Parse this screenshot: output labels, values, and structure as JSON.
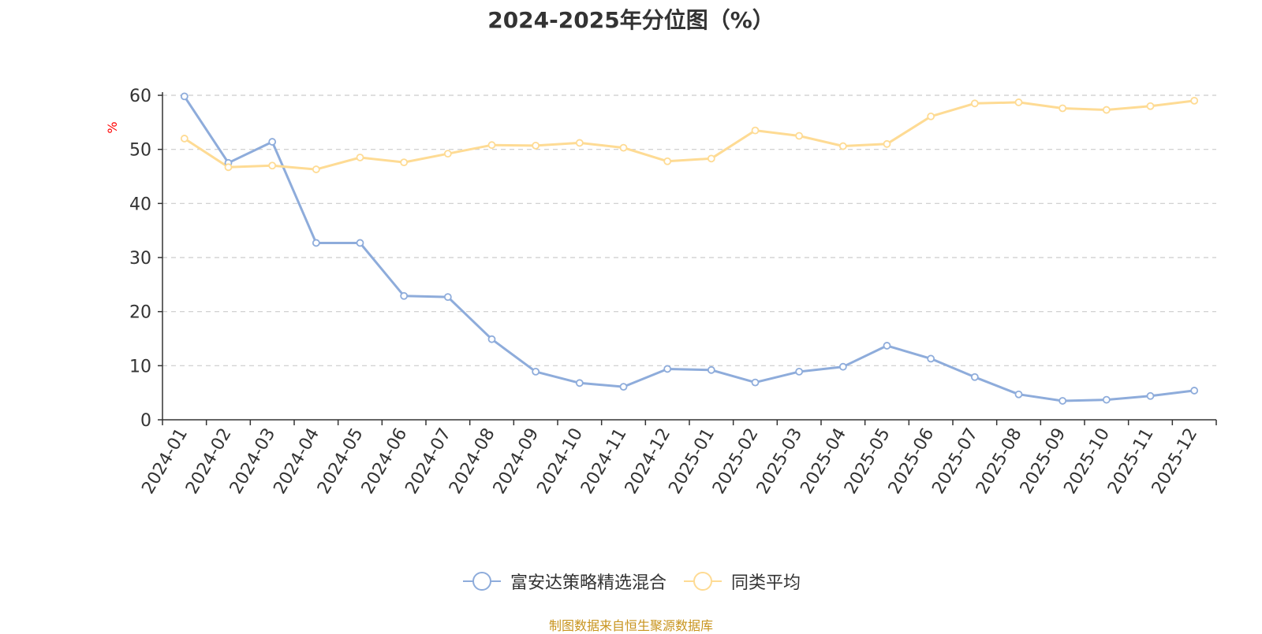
{
  "colors": {
    "series_primary": "#8eacdb",
    "series_secondary": "#fedb94",
    "axis": "#333333",
    "grid": "#cccccc",
    "ylabel": "#ff0000",
    "source": "#c8941e"
  },
  "chart_data": {
    "type": "line",
    "title": "2024-2025年分位图（%）",
    "xlabel": "",
    "ylabel": "%",
    "ylim": [
      0,
      60
    ],
    "yticks": [
      0,
      10,
      20,
      30,
      40,
      50,
      60
    ],
    "grid": true,
    "legend_position": "bottom-center",
    "categories": [
      "2024-01",
      "2024-02",
      "2024-03",
      "2024-04",
      "2024-05",
      "2024-06",
      "2024-07",
      "2024-08",
      "2024-09",
      "2024-10",
      "2024-11",
      "2024-12",
      "2025-01",
      "2025-02",
      "2025-03",
      "2025-04",
      "2025-05",
      "2025-06",
      "2025-07",
      "2025-08",
      "2025-09",
      "2025-10",
      "2025-11",
      "2025-12"
    ],
    "series": [
      {
        "name": "富安达策略精选混合",
        "values": [
          59.8,
          47.5,
          51.4,
          32.7,
          32.7,
          22.9,
          22.7,
          14.9,
          8.9,
          6.8,
          6.1,
          9.4,
          9.2,
          6.9,
          8.9,
          9.8,
          13.7,
          11.3,
          7.9,
          4.7,
          3.5,
          3.7,
          4.4,
          5.4
        ]
      },
      {
        "name": "同类平均",
        "values": [
          52.0,
          46.7,
          47.0,
          46.3,
          48.5,
          47.6,
          49.2,
          50.8,
          50.7,
          51.2,
          50.3,
          47.8,
          48.3,
          53.5,
          52.5,
          50.6,
          51.0,
          56.1,
          58.5,
          58.7,
          57.6,
          57.3,
          58.0,
          59.0
        ]
      }
    ],
    "source": "制图数据来自恒生聚源数据库"
  }
}
